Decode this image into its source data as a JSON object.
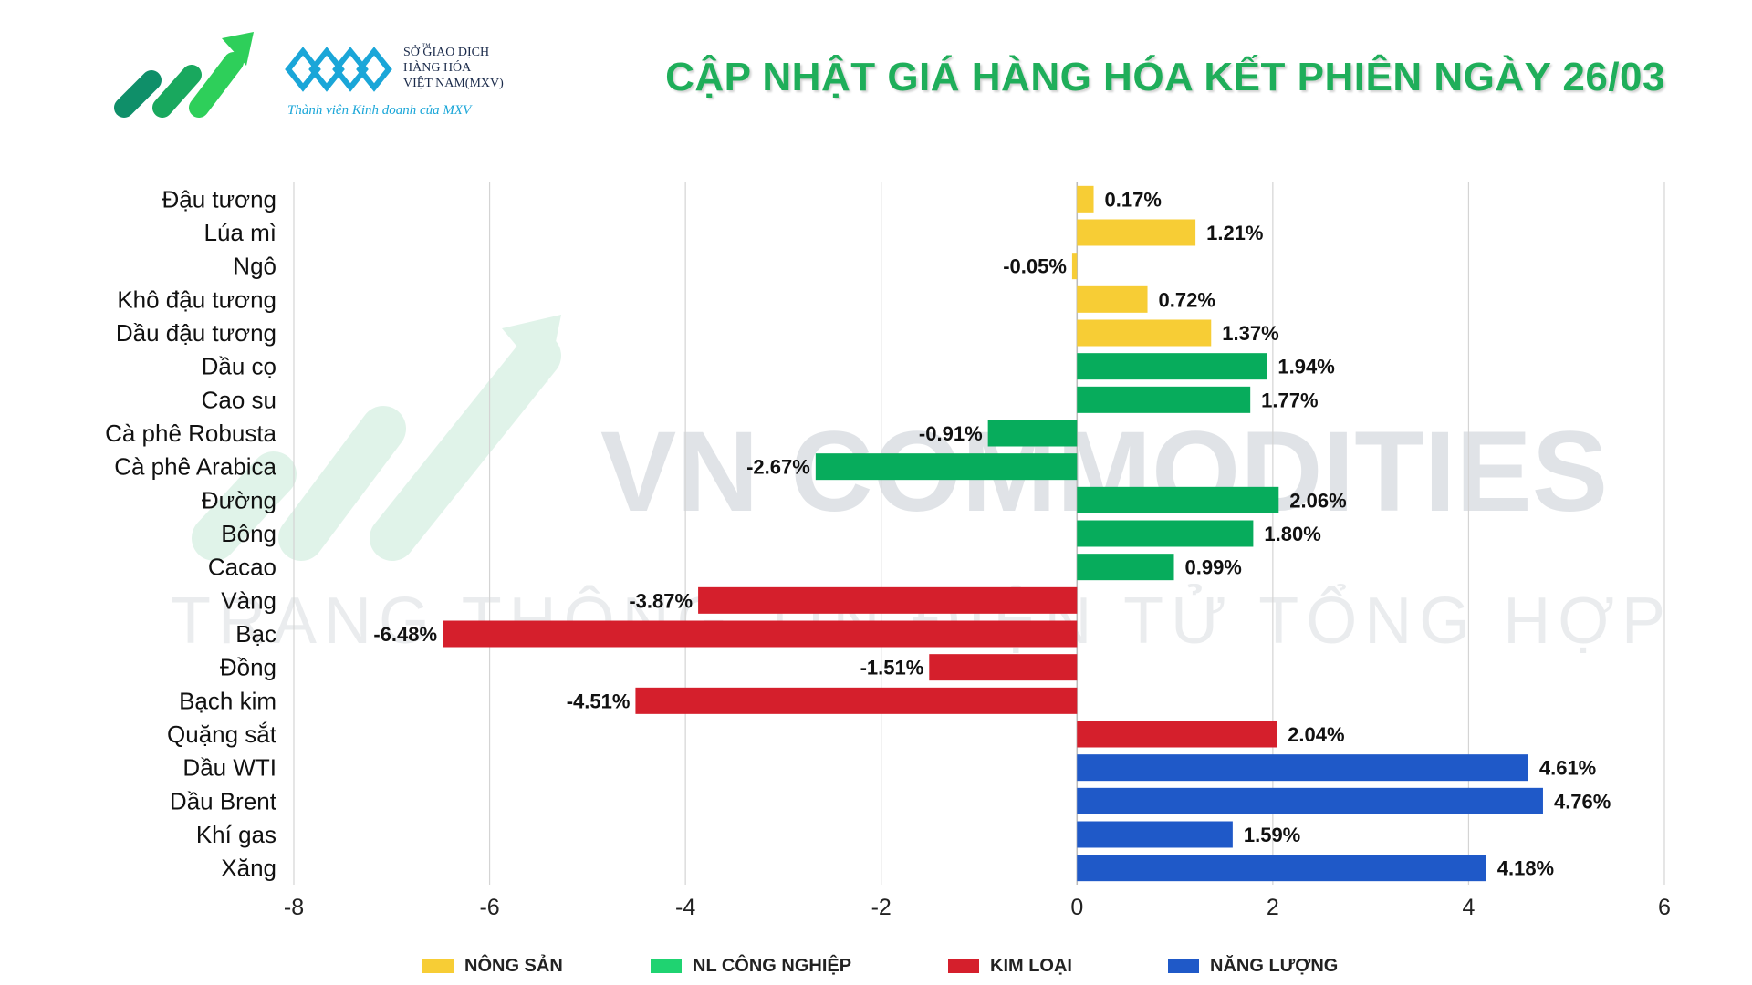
{
  "header": {
    "title": "CẬP NHẬT GIÁ HÀNG HÓA KẾT PHIÊN NGÀY 26/03",
    "mxv_lines": [
      "SỞ GIAO DỊCH",
      "HÀNG HÓA",
      "VIỆT NAM(MXV)"
    ],
    "mxv_tagline": "Thành viên Kinh doanh của MXV",
    "mxv_tm": "™"
  },
  "watermark": {
    "main": "VN COMMODITIES",
    "sub": "TRANG THÔNG TIN ĐIỆN TỬ TỔNG HỢP"
  },
  "colors": {
    "nong_san": "#f7cd35",
    "nl_cong_nghiep": "#07ac5c",
    "kim_loai": "#d51f2c",
    "nang_luong": "#1f59c8",
    "title": "#1fae5a"
  },
  "legend": [
    {
      "label": "NÔNG SẢN",
      "color": "#f7cd35"
    },
    {
      "label": "NL CÔNG NGHIỆP",
      "color": "#1fd371"
    },
    {
      "label": "KIM LOẠI",
      "color": "#d51f2c"
    },
    {
      "label": "NĂNG LƯỢNG",
      "color": "#1f59c8"
    }
  ],
  "chart_data": {
    "type": "bar",
    "orientation": "horizontal",
    "xlim": [
      -8,
      6
    ],
    "xticks": [
      -8,
      -6,
      -4,
      -2,
      0,
      2,
      4,
      6
    ],
    "grid": true,
    "legend_position": "bottom",
    "categories": [
      "Đậu tương",
      "Lúa mì",
      "Ngô",
      "Khô đậu tương",
      "Dầu đậu tương",
      "Dầu cọ",
      "Cao su",
      "Cà phê Robusta",
      "Cà phê Arabica",
      "Đường",
      "Bông",
      "Cacao",
      "Vàng",
      "Bạc",
      "Đồng",
      "Bạch kim",
      "Quặng sắt",
      "Dầu WTI",
      "Dầu Brent",
      "Khí gas",
      "Xăng"
    ],
    "values": [
      0.17,
      1.21,
      -0.05,
      0.72,
      1.37,
      1.94,
      1.77,
      -0.91,
      -2.67,
      2.06,
      1.8,
      0.99,
      -3.87,
      -6.48,
      -1.51,
      -4.51,
      2.04,
      4.61,
      4.76,
      1.59,
      4.18
    ],
    "labels": [
      "0.17%",
      "1.21%",
      "-0.05%",
      "0.72%",
      "1.37%",
      "1.94%",
      "1.77%",
      "-0.91%",
      "-2.67%",
      "2.06%",
      "1.80%",
      "0.99%",
      "-3.87%",
      "-6.48%",
      "-1.51%",
      "-4.51%",
      "2.04%",
      "4.61%",
      "4.76%",
      "1.59%",
      "4.18%"
    ],
    "groups": [
      "NÔNG SẢN",
      "NÔNG SẢN",
      "NÔNG SẢN",
      "NÔNG SẢN",
      "NÔNG SẢN",
      "NL CÔNG NGHIỆP",
      "NL CÔNG NGHIỆP",
      "NL CÔNG NGHIỆP",
      "NL CÔNG NGHIỆP",
      "NL CÔNG NGHIỆP",
      "NL CÔNG NGHIỆP",
      "NL CÔNG NGHIỆP",
      "KIM LOẠI",
      "KIM LOẠI",
      "KIM LOẠI",
      "KIM LOẠI",
      "KIM LOẠI",
      "NĂNG LƯỢNG",
      "NĂNG LƯỢNG",
      "NĂNG LƯỢNG",
      "NĂNG LƯỢNG"
    ]
  }
}
